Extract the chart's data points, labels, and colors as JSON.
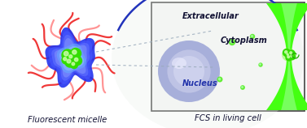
{
  "title_left": "Fluorescent micelle",
  "title_right": "FCS in living cell",
  "label_extracellular": "Extracellular",
  "label_cytoplasm": "Cytoplasm",
  "label_nucleus": "Nucleus",
  "bg_color": "#ffffff",
  "box_edge_color": "#444444",
  "red_color": "#ee2222",
  "red_light": "#ff8888",
  "blue_dark": "#1122cc",
  "blue_mid": "#3344dd",
  "blue_light": "#88aaff",
  "blue_cell_edge": "#2233bb",
  "green_bright": "#44ff11",
  "green_mid": "#33dd00",
  "green_dark": "#22aa00",
  "nucleus_fill": "#c0c4ee",
  "nucleus_edge": "#8899cc",
  "dash_color": "#99aabb",
  "text_dark": "#111133",
  "font_labels": 7.0,
  "font_titles": 7.2
}
